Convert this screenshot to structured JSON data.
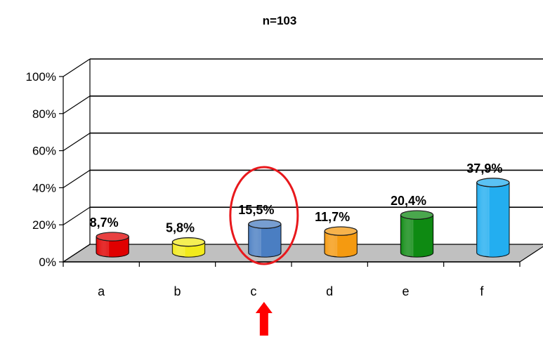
{
  "chart_data": {
    "type": "bar",
    "title": "n=103",
    "categories": [
      "a",
      "b",
      "c",
      "d",
      "e",
      "f"
    ],
    "values": [
      8.7,
      5.8,
      15.5,
      11.7,
      20.4,
      37.9
    ],
    "data_labels": [
      "8,7%",
      "5,8%",
      "15,5%",
      "11,7%",
      "20,4%",
      "37,9%"
    ],
    "ylim": [
      0,
      100
    ],
    "yticks": [
      0,
      20,
      40,
      60,
      80,
      100
    ],
    "ytick_labels": [
      "0%",
      "20%",
      "40%",
      "60%",
      "80%",
      "100%"
    ],
    "grid": true,
    "style": "3d-cylinder",
    "colors": [
      "#e00000",
      "#f2ea1c",
      "#4a7ec2",
      "#f59a10",
      "#0e8a12",
      "#23aef0"
    ],
    "highlight": {
      "category": "c",
      "shape": "ellipse",
      "color": "#e8181c"
    },
    "arrow": {
      "category": "c",
      "direction": "up",
      "color": "#ff0000"
    }
  }
}
